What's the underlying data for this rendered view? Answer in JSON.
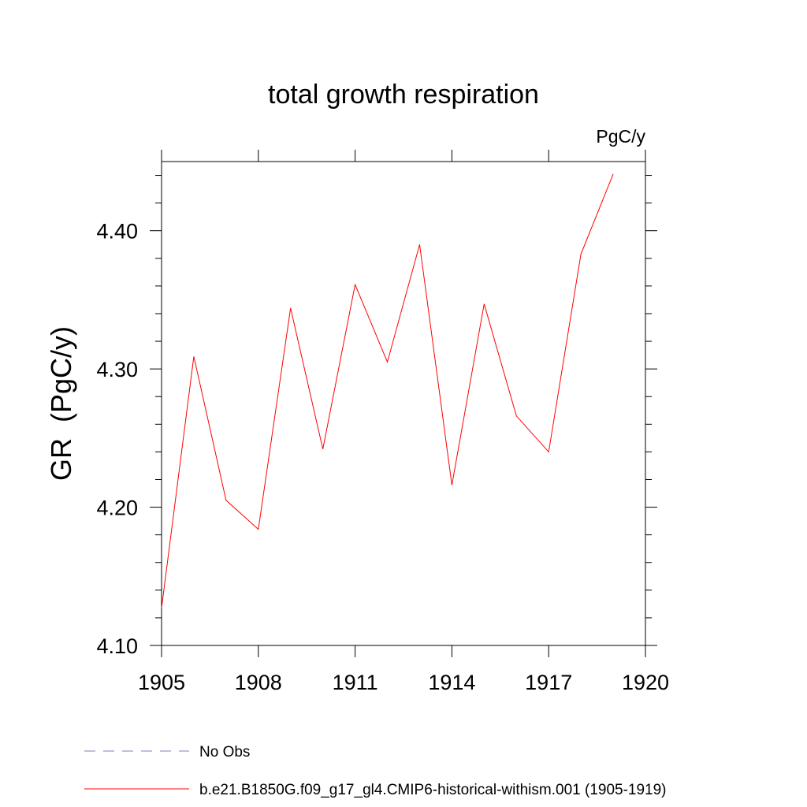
{
  "chart_data": {
    "type": "line",
    "title": "total growth respiration",
    "units_label": "PgC/y",
    "ylabel": "GR  (PgC/y)",
    "xlabel": "",
    "xlim": [
      1905,
      1920
    ],
    "ylim": [
      4.1,
      4.45
    ],
    "x_ticks": [
      1905,
      1908,
      1911,
      1914,
      1917,
      1920
    ],
    "x_tick_labels": [
      "1905",
      "1908",
      "1911",
      "1914",
      "1917",
      "1920"
    ],
    "y_ticks": [
      4.1,
      4.2,
      4.3,
      4.4
    ],
    "y_tick_labels": [
      "4.10",
      "4.20",
      "4.30",
      "4.40"
    ],
    "grid": false,
    "legend_position": "bottom",
    "series": [
      {
        "name": "b.e21.B1850G.f09_g17_gl4.CMIP6-historical-withism.001 (1905-1919)",
        "color": "#ff0000",
        "dash": "solid",
        "x": [
          1905,
          1906,
          1907,
          1908,
          1909,
          1910,
          1911,
          1912,
          1913,
          1914,
          1915,
          1916,
          1917,
          1918,
          1919
        ],
        "values": [
          4.127,
          4.309,
          4.205,
          4.184,
          4.344,
          4.242,
          4.361,
          4.305,
          4.39,
          4.216,
          4.347,
          4.266,
          4.24,
          4.383,
          4.441
        ]
      }
    ],
    "legend": [
      {
        "label": "No Obs",
        "color": "#7f7fbf",
        "dash": "dashed"
      },
      {
        "label": "b.e21.B1850G.f09_g17_gl4.CMIP6-historical-withism.001 (1905-1919)",
        "color": "#ff0000",
        "dash": "solid"
      }
    ]
  }
}
